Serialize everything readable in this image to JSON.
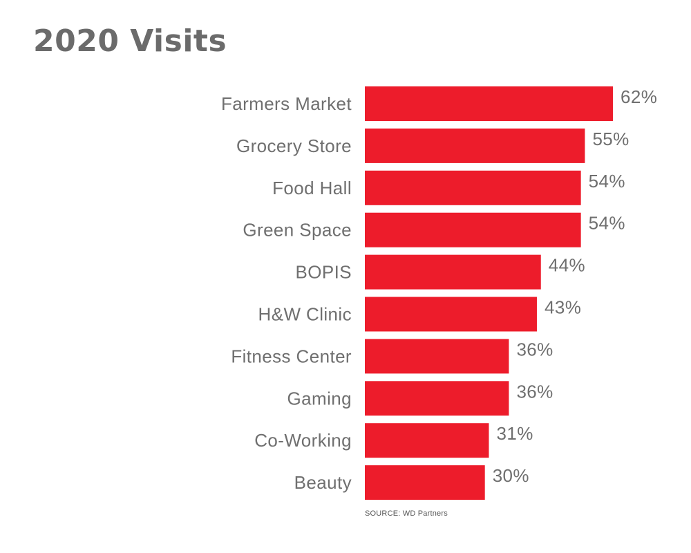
{
  "chart_data": {
    "type": "bar",
    "orientation": "horizontal",
    "title": "2020 Visits",
    "categories": [
      "Farmers Market",
      "Grocery Store",
      "Food Hall",
      "Green Space",
      "BOPIS",
      "H&W Clinic",
      "Fitness Center",
      "Gaming",
      "Co-Working",
      "Beauty"
    ],
    "values": [
      62,
      55,
      54,
      54,
      44,
      43,
      36,
      36,
      31,
      30
    ],
    "value_labels": [
      "62%",
      "55%",
      "54%",
      "54%",
      "44%",
      "43%",
      "36%",
      "36%",
      "31%",
      "30%"
    ],
    "xlim": [
      0,
      100
    ],
    "unit": "%",
    "grid": false,
    "bar_color": "#ed1c2b",
    "source": "SOURCE: WD Partners"
  },
  "colors": {
    "bar": "#ed1c2b",
    "title": "#6b6b6b",
    "label": "#6f6f6f"
  }
}
